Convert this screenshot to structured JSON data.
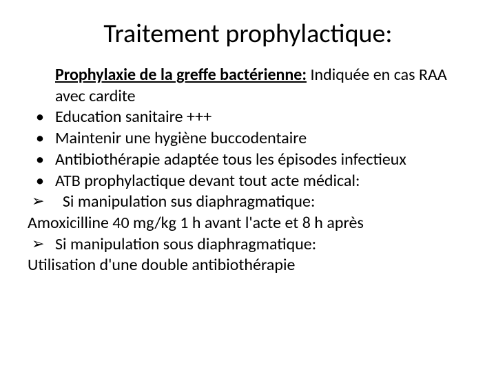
{
  "colors": {
    "background": "#ffffff",
    "text": "#000000"
  },
  "typography": {
    "title_fontsize": 38,
    "body_fontsize": 24,
    "font_family": "Calibri"
  },
  "title": "Traitement prophylactique:",
  "lead": {
    "bold_underline": "Prophylaxie de la greffe bactérienne:",
    "rest": " Indiquée en cas RAA avec cardite"
  },
  "bullets": [
    "Education sanitaire +++",
    "Maintenir une hygiène buccodentaire",
    "Antibiothérapie adaptée tous les épisodes infectieux",
    "ATB prophylactique devant tout acte médical:"
  ],
  "arrow1": "Si manipulation sus diaphragmatique:",
  "line1": "Amoxicilline 40 mg/kg 1 h avant l'acte et 8 h après",
  "arrow2": "Si manipulation sous diaphragmatique:",
  "line2": "Utilisation d'une double antibiothérapie"
}
